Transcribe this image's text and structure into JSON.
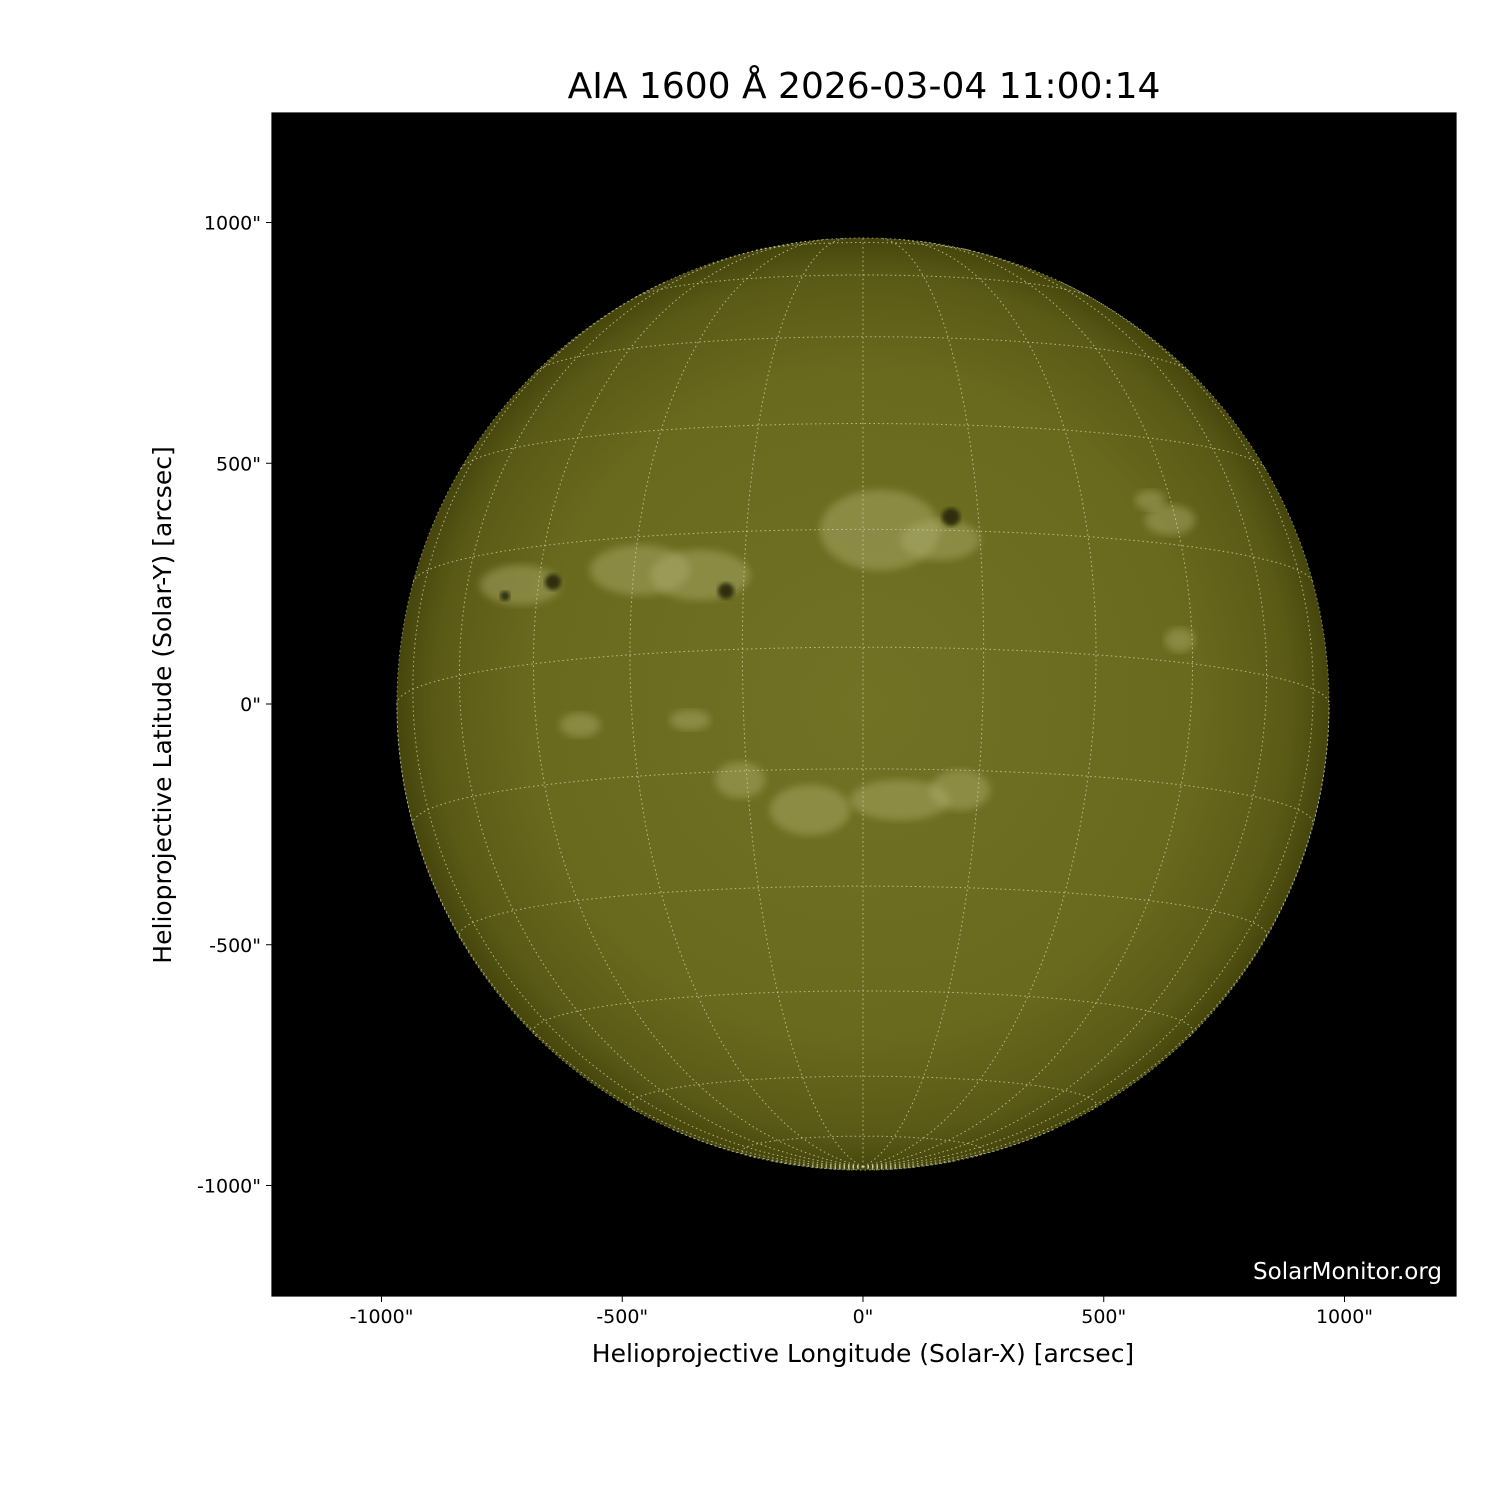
{
  "chart_data": {
    "type": "image",
    "title": "AIA 1600 Å 2026-03-04 11:00:14",
    "xlabel": "Helioprojective Longitude (Solar-X) [arcsec]",
    "ylabel": "Helioprojective Latitude (Solar-Y) [arcsec]",
    "xlim": [
      -1230,
      1230
    ],
    "ylim": [
      -1230,
      1230
    ],
    "xticks": [
      -1000,
      -500,
      0,
      500,
      1000
    ],
    "xtick_labels": [
      "-1000\"",
      "-500\"",
      "0\"",
      "500\"",
      "1000\""
    ],
    "yticks": [
      1000,
      500,
      0,
      -500,
      -1000
    ],
    "ytick_labels": [
      "1000\"",
      "500\"",
      "0\"",
      "-500\"",
      "-1000\""
    ],
    "solar_radius_arcsec": 968,
    "grid_spacing_deg": 15,
    "grid": true,
    "colormap": [
      "#000000",
      "#4a4a10",
      "#6e6e22",
      "#b0b070"
    ],
    "watermark": "SolarMonitor.org"
  }
}
